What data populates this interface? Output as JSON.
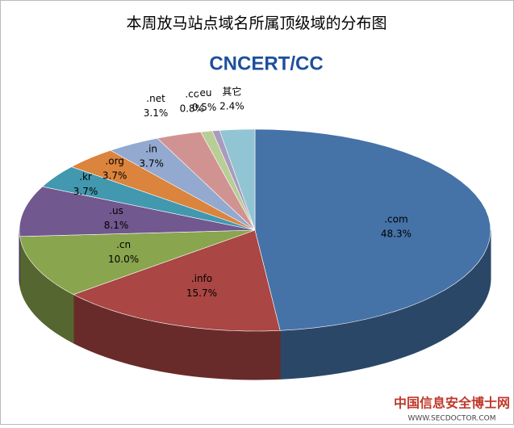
{
  "chart_data": {
    "type": "pie3d",
    "title": "本周放马站点域名所属顶级域的分布图",
    "logo": "CNCERT/CC",
    "categories": [
      ".com",
      ".info",
      ".cn",
      ".us",
      ".kr",
      ".org",
      ".in",
      ".net",
      ".cc",
      ".eu",
      "其它"
    ],
    "values": [
      48.3,
      15.7,
      10.0,
      8.1,
      3.7,
      3.7,
      3.7,
      3.1,
      0.8,
      0.5,
      2.4
    ],
    "value_labels": [
      "48.3%",
      "15.7%",
      "10.0%",
      "8.1%",
      "3.7%",
      "3.7%",
      "3.7%",
      "3.1%",
      "0.8%",
      "0.5%",
      "2.4%"
    ],
    "colors": [
      "#4572a7",
      "#aa4643",
      "#89a54e",
      "#71588f",
      "#4198af",
      "#db843d",
      "#93a9cf",
      "#d19392",
      "#b9cd96",
      "#a99bbd",
      "#92c5d4"
    ],
    "watermark": "中国信息安全博士网",
    "watermark_url": "WWW.SECDOCTOR.COM"
  }
}
